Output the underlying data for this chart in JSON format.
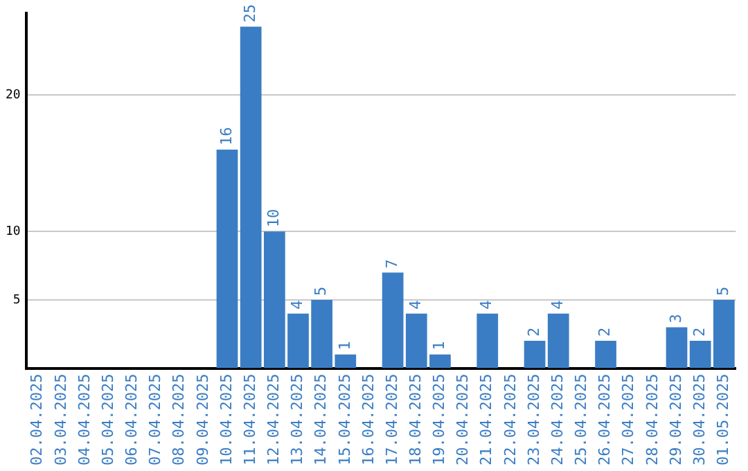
{
  "chart_data": {
    "type": "bar",
    "categories": [
      "02.04.2025",
      "03.04.2025",
      "04.04.2025",
      "05.04.2025",
      "06.04.2025",
      "07.04.2025",
      "08.04.2025",
      "09.04.2025",
      "10.04.2025",
      "11.04.2025",
      "12.04.2025",
      "13.04.2025",
      "14.04.2025",
      "15.04.2025",
      "16.04.2025",
      "17.04.2025",
      "18.04.2025",
      "19.04.2025",
      "20.04.2025",
      "21.04.2025",
      "22.04.2025",
      "23.04.2025",
      "24.04.2025",
      "25.04.2025",
      "26.04.2025",
      "27.04.2025",
      "28.04.2025",
      "29.04.2025",
      "30.04.2025",
      "01.05.2025"
    ],
    "values": [
      null,
      null,
      null,
      null,
      null,
      null,
      null,
      null,
      16,
      25,
      10,
      4,
      5,
      1,
      null,
      7,
      4,
      1,
      null,
      4,
      null,
      2,
      4,
      null,
      2,
      null,
      null,
      3,
      2,
      5
    ],
    "color": "#3b7dc4",
    "ylim": [
      0,
      26
    ],
    "yticks": [
      5,
      10,
      20
    ],
    "grid": "y",
    "data_labels": true,
    "legend": false
  }
}
